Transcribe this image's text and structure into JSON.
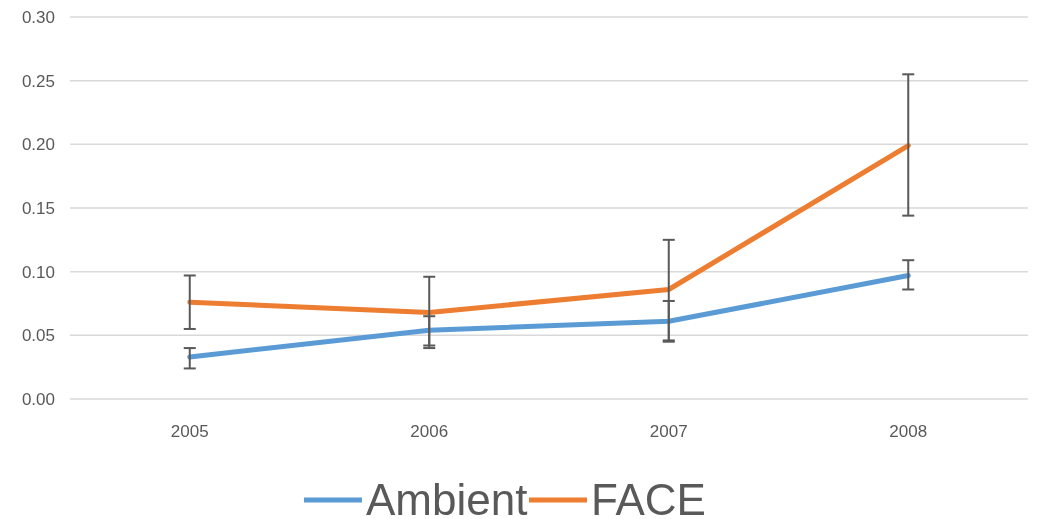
{
  "chart_data": {
    "type": "line",
    "categories": [
      "2005",
      "2006",
      "2007",
      "2008"
    ],
    "series": [
      {
        "name": "Ambient",
        "color": "#5b9bd5",
        "values": [
          0.033,
          0.054,
          0.061,
          0.097
        ],
        "errors": [
          [
            0.024,
            0.04
          ],
          [
            0.042,
            0.065
          ],
          [
            0.046,
            0.077
          ],
          [
            0.086,
            0.109
          ]
        ]
      },
      {
        "name": "FACE",
        "color": "#ed7d31",
        "values": [
          0.076,
          0.068,
          0.086,
          0.199
        ],
        "errors": [
          [
            0.055,
            0.097
          ],
          [
            0.04,
            0.096
          ],
          [
            0.045,
            0.125
          ],
          [
            0.144,
            0.255
          ]
        ]
      }
    ],
    "ylim": [
      0,
      0.3
    ],
    "yticks": [
      {
        "value": 0,
        "label": "0.00"
      },
      {
        "value": 0.05,
        "label": "0.05"
      },
      {
        "value": 0.1,
        "label": "0.10"
      },
      {
        "value": 0.15,
        "label": "0.15"
      },
      {
        "value": 0.2,
        "label": "0.20"
      },
      {
        "value": 0.25,
        "label": "0.25"
      },
      {
        "value": 0.3,
        "label": "0.30"
      }
    ],
    "grid": "y",
    "legend": "bottom",
    "marker": "none",
    "line_style": "solid"
  }
}
